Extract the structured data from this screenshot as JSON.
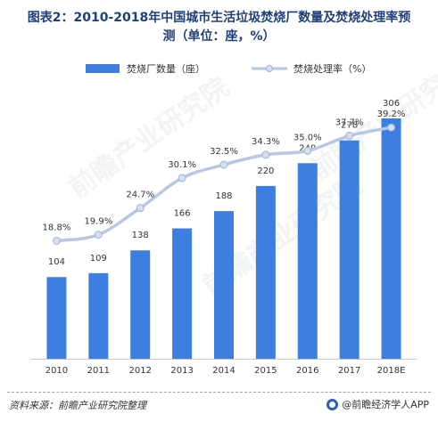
{
  "title_lines": [
    "图表2：2010-2018年中国城市生活垃圾焚烧厂数量及焚烧处理率预",
    "测（单位：座，%）"
  ],
  "source": "资料来源：前瞻产业研究院整理",
  "brand": "@前瞻经济学人APP",
  "watermark_text": "前瞻产业研究院",
  "colors": {
    "bar": "#3d7fe0",
    "line": "#b9c8e2",
    "marker": "#d5deee",
    "marker_stroke": "#9fb2d4",
    "label": "#333333"
  },
  "chart_data": {
    "type": "bar+line",
    "categories": [
      "2010",
      "2011",
      "2012",
      "2013",
      "2014",
      "2015",
      "2016",
      "2017",
      "2018E"
    ],
    "series": [
      {
        "name": "焚烧厂数量（座）",
        "type": "bar",
        "values": [
          104,
          109,
          138,
          166,
          188,
          220,
          249,
          278,
          306
        ]
      },
      {
        "name": "焚烧处理率（%）",
        "type": "line",
        "values": [
          18.8,
          19.9,
          24.7,
          30.1,
          32.5,
          34.3,
          35.0,
          37.7,
          39.2
        ],
        "labels": [
          "18.8%",
          "19.9%",
          "24.7%",
          "30.1%",
          "32.5%",
          "34.3%",
          "35.0%",
          "37.7%",
          "39.2%"
        ]
      }
    ],
    "bar_ylim": [
      0,
      330
    ],
    "line_ylim": [
      0,
      42
    ],
    "legend_position": "top",
    "grid": false
  }
}
